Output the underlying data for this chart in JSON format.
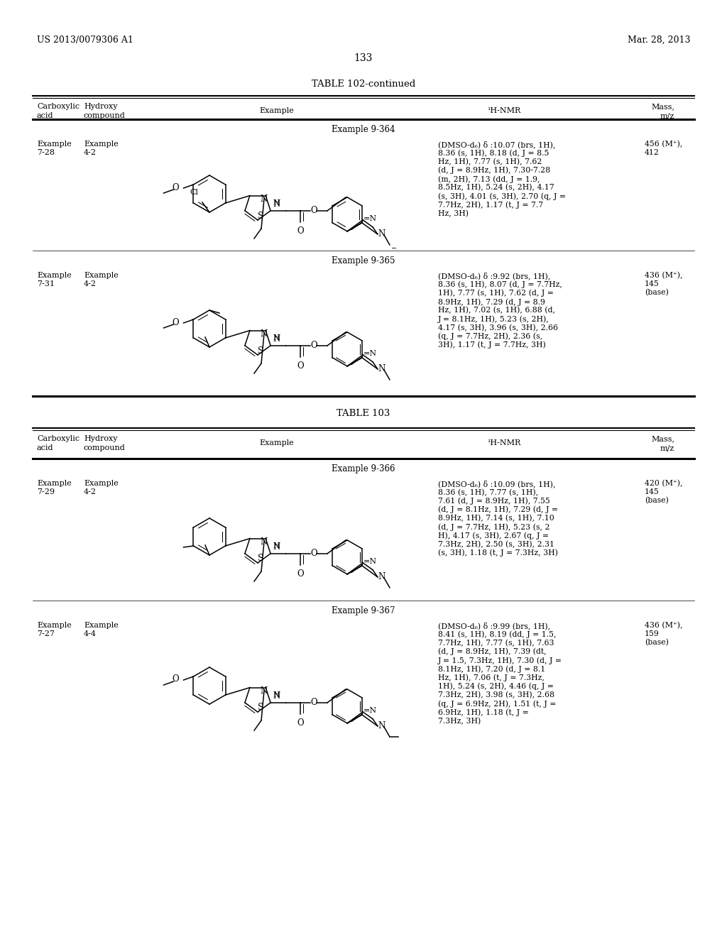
{
  "page_left": "US 2013/0079306 A1",
  "page_right": "Mar. 28, 2013",
  "page_number": "133",
  "background_color": "#ffffff",
  "table1_title": "TABLE 102-continued",
  "table2_title": "TABLE 103",
  "example1_label": "Example 9-364",
  "example1_acid": "Example\n7-28",
  "example1_hydroxy": "Example\n4-2",
  "example1_nmr": "(DMSO-d₆) δ :10.07 (brs, 1H),\n8.36 (s, 1H), 8.18 (d, J = 8.5\nHz, 1H), 7.77 (s, 1H), 7.62\n(d, J = 8.9Hz, 1H), 7.30-7.28\n(m, 2H), 7.13 (dd, J = 1.9,\n8.5Hz, 1H), 5.24 (s, 2H), 4.17\n(s, 3H), 4.01 (s, 3H), 2.70 (q, J =\n7.7Hz, 2H), 1.17 (t, J = 7.7\nHz, 3H)",
  "example1_mass": "456 (M⁺),\n412",
  "example2_label": "Example 9-365",
  "example2_acid": "Example\n7-31",
  "example2_hydroxy": "Example\n4-2",
  "example2_nmr": "(DMSO-d₆) δ :9.92 (brs, 1H),\n8.36 (s, 1H), 8.07 (d, J = 7.7Hz,\n1H), 7.77 (s, 1H), 7.62 (d, J =\n8.9Hz, 1H), 7.29 (d, J = 8.9\nHz, 1H), 7.02 (s, 1H), 6.88 (d,\nJ = 8.1Hz, 1H), 5.23 (s, 2H),\n4.17 (s, 3H), 3.96 (s, 3H), 2.66\n(q, J = 7.7Hz, 2H), 2.36 (s,\n3H), 1.17 (t, J = 7.7Hz, 3H)",
  "example2_mass": "436 (M⁺),\n145\n(base)",
  "example3_label": "Example 9-366",
  "example3_acid": "Example\n7-29",
  "example3_hydroxy": "Example\n4-2",
  "example3_nmr": "(DMSO-d₆) δ :10.09 (brs, 1H),\n8.36 (s, 1H), 7.77 (s, 1H),\n7.61 (d, J = 8.9Hz, 1H), 7.55\n(d, J = 8.1Hz, 1H), 7.29 (d, J =\n8.9Hz, 1H), 7.14 (s, 1H), 7.10\n(d, J = 7.7Hz, 1H), 5.23 (s, 2\nH), 4.17 (s, 3H), 2.67 (q, J =\n7.3Hz, 2H), 2.50 (s, 3H), 2.31\n(s, 3H), 1.18 (t, J = 7.3Hz, 3H)",
  "example3_mass": "420 (M⁺),\n145\n(base)",
  "example4_label": "Example 9-367",
  "example4_acid": "Example\n7-27",
  "example4_hydroxy": "Example\n4-4",
  "example4_nmr": "(DMSO-d₆) δ :9.99 (brs, 1H),\n8.41 (s, 1H), 8.19 (dd, J = 1.5,\n7.7Hz, 1H), 7.77 (s, 1H), 7.63\n(d, J = 8.9Hz, 1H), 7.39 (dt,\nJ = 1.5, 7.3Hz, 1H), 7.30 (d, J =\n8.1Hz, 1H), 7.20 (d, J = 8.1\nHz, 1H), 7.06 (t, J = 7.3Hz,\n1H), 5.24 (s, 2H), 4.46 (q, J =\n7.3Hz, 2H), 3.98 (s, 3H), 2.68\n(q, J = 6.9Hz, 2H), 1.51 (t, J =\n6.9Hz, 1H), 1.18 (t, J =\n7.3Hz, 3H)",
  "example4_mass": "436 (M⁺),\n159\n(base)"
}
